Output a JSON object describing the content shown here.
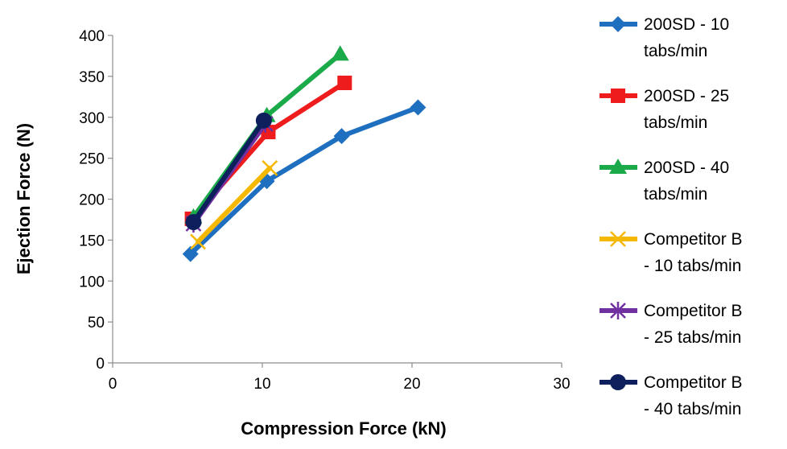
{
  "chart_data": {
    "type": "line",
    "title": "",
    "xlabel": "Compression Force (kN)",
    "ylabel": "Ejection Force (N)",
    "xlim": [
      0,
      30
    ],
    "ylim": [
      0,
      400
    ],
    "x_ticks": [
      0,
      10,
      20,
      30
    ],
    "y_ticks": [
      0,
      50,
      100,
      150,
      200,
      250,
      300,
      350,
      400
    ],
    "grid": false,
    "legend_position": "right",
    "series": [
      {
        "name": "200SD - 10 tabs/min",
        "legend_lines": [
          "200SD - 10",
          "tabs/min"
        ],
        "color": "#1f6fc0",
        "marker": "diamond",
        "points": [
          [
            5.2,
            133
          ],
          [
            10.3,
            222
          ],
          [
            15.3,
            277
          ],
          [
            20.4,
            312
          ]
        ]
      },
      {
        "name": "200SD - 25 tabs/min",
        "legend_lines": [
          "200SD - 25",
          "tabs/min"
        ],
        "color": "#ee1c1c",
        "marker": "square",
        "points": [
          [
            5.3,
            176
          ],
          [
            10.4,
            282
          ],
          [
            15.5,
            342
          ]
        ]
      },
      {
        "name": "200SD - 40 tabs/min",
        "legend_lines": [
          "200SD - 40",
          "tabs/min"
        ],
        "color": "#1aaa4a",
        "marker": "triangle",
        "points": [
          [
            5.4,
            178
          ],
          [
            10.3,
            302
          ],
          [
            15.2,
            377
          ]
        ]
      },
      {
        "name": "Competitor B - 10 tabs/min",
        "legend_lines": [
          "Competitor B",
          "- 10 tabs/min"
        ],
        "color": "#f5b800",
        "marker": "x",
        "points": [
          [
            5.7,
            148
          ],
          [
            10.5,
            238
          ]
        ]
      },
      {
        "name": "Competitor B - 25 tabs/min",
        "legend_lines": [
          "Competitor B",
          "- 25 tabs/min"
        ],
        "color": "#7030a0",
        "marker": "star",
        "points": [
          [
            5.4,
            170
          ],
          [
            10.2,
            292
          ]
        ]
      },
      {
        "name": "Competitor B - 40 tabs/min",
        "legend_lines": [
          "Competitor B",
          "- 40 tabs/min"
        ],
        "color": "#0d1f5c",
        "marker": "circle",
        "points": [
          [
            5.4,
            172
          ],
          [
            10.1,
            296
          ]
        ]
      }
    ]
  }
}
